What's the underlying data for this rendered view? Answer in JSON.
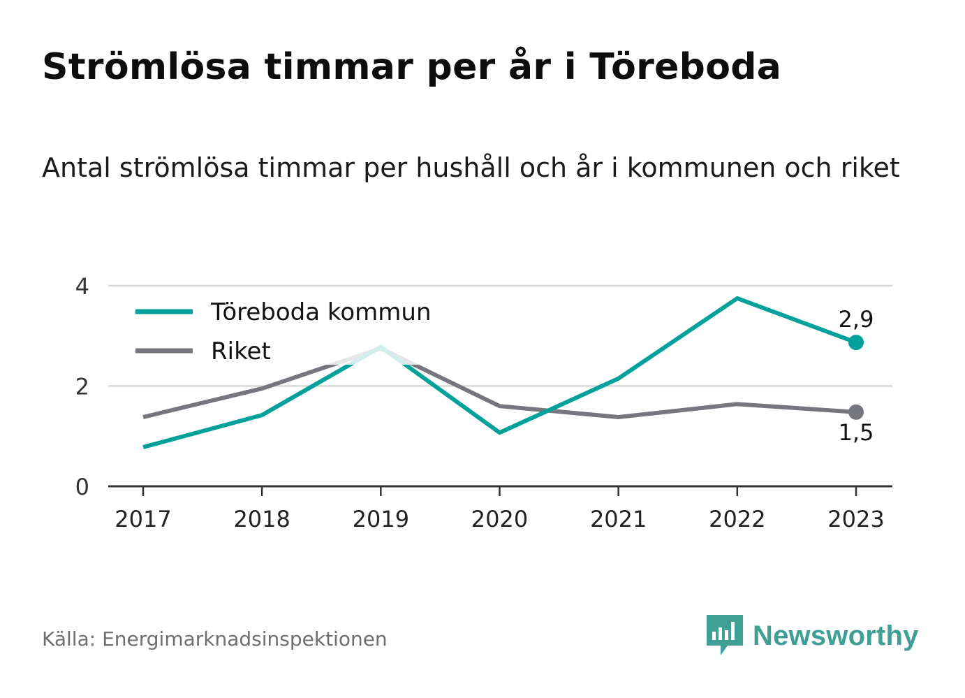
{
  "title": "Strömlösa timmar per år i Töreboda",
  "subtitle": "Antal strömlösa timmar per hushåll och år i kommunen och riket",
  "source": "Källa: Energimarknadsinspektionen",
  "brand": {
    "name": "Newsworthy",
    "icon": "newsworthy-chart-bubble-icon",
    "color": "#3f9f95"
  },
  "chart_data": {
    "type": "line",
    "x": [
      "2017",
      "2018",
      "2019",
      "2020",
      "2021",
      "2022",
      "2023"
    ],
    "ylim": [
      0,
      4
    ],
    "yticks": [
      "0",
      "2",
      "4"
    ],
    "grid": true,
    "legend_position": "top-left",
    "series": [
      {
        "name": "Töreboda kommun",
        "color": "#00a19a",
        "values": [
          0.78,
          1.42,
          2.78,
          1.07,
          2.15,
          3.75,
          2.87
        ],
        "end_label": "2,9"
      },
      {
        "name": "Riket",
        "color": "#76767e",
        "values": [
          1.38,
          1.95,
          2.75,
          1.6,
          1.38,
          1.64,
          1.48
        ],
        "end_label": "1,5"
      }
    ]
  }
}
